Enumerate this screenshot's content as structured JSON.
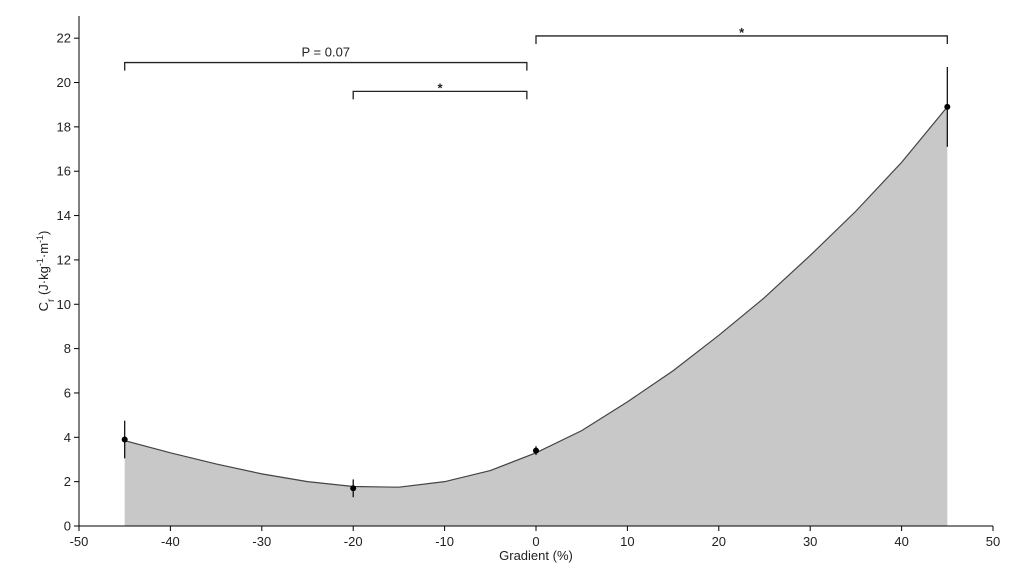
{
  "chart_data": {
    "type": "area",
    "x_label": "Gradient (%)",
    "y_label": [
      "C",
      "r",
      " (J·kg",
      "-1",
      "·m",
      "-1",
      ")"
    ],
    "xlim": [
      -50,
      50
    ],
    "xticks": [
      -50,
      -40,
      -30,
      -20,
      -10,
      0,
      10,
      20,
      30,
      40,
      50
    ],
    "ylim": [
      0,
      23
    ],
    "yticks": [
      0,
      2,
      4,
      6,
      8,
      10,
      12,
      14,
      16,
      18,
      20,
      22
    ],
    "curve": {
      "color": "#c8c8c8",
      "x": [
        -45,
        -40,
        -35,
        -30,
        -25,
        -20,
        -15,
        -10,
        -5,
        0,
        5,
        10,
        15,
        20,
        25,
        30,
        35,
        40,
        45
      ],
      "values": [
        3.85,
        3.3,
        2.8,
        2.35,
        2.0,
        1.78,
        1.75,
        2.0,
        2.5,
        3.3,
        4.3,
        5.6,
        7.0,
        8.6,
        10.3,
        12.2,
        14.2,
        16.4,
        18.9
      ]
    },
    "points": {
      "color": "#000000",
      "x": [
        -45,
        -20,
        0,
        45
      ],
      "values": [
        3.9,
        1.7,
        3.4,
        18.9
      ],
      "errors": [
        0.85,
        0.4,
        0.2,
        1.8
      ]
    },
    "annotations": [
      {
        "text": "P = 0.07",
        "x": [
          -45,
          -1
        ],
        "y": 20.9
      },
      {
        "text": "*",
        "x": [
          -20,
          -1
        ],
        "y": 19.6
      },
      {
        "text": "*",
        "x": [
          0,
          45
        ],
        "y": 22.1
      }
    ]
  }
}
